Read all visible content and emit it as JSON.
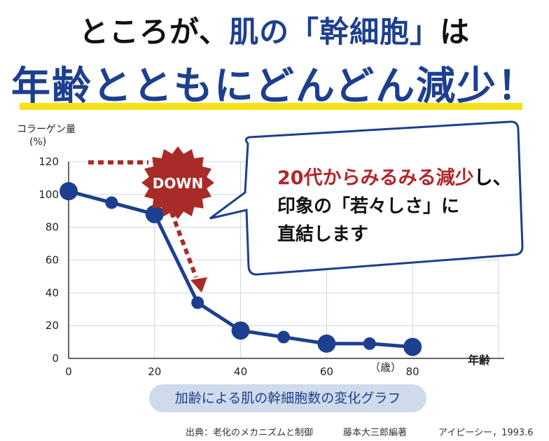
{
  "headline": {
    "line1_a": "ところが、",
    "line1_b": "肌の「幹細胞」",
    "line1_c": "は",
    "line2": "年齢とともにどんどん減少！"
  },
  "callout": {
    "line1_highlight": "20代からみるみる減少",
    "line1_rest": "し、",
    "line2": "印象の「若々しさ」に",
    "line3": "直結します"
  },
  "badge": "DOWN",
  "caption": "加齢による肌の幹細胞数の変化グラフ",
  "source": {
    "text1": "出典：老化のメカニズムと制御",
    "text2": "藤本大三郎編著",
    "text3": "アイピーシー，1993.6"
  },
  "colors": {
    "brand_blue": "#1d3f8f",
    "red": "#b3262a",
    "yellow": "#f5e21a",
    "caption_bg": "#cfdbea"
  },
  "chart_data": {
    "type": "line",
    "ylabel": "コラーゲン量",
    "yunit": "(%)",
    "xlabel": "年齢",
    "xunit": "（歳）",
    "xlim": [
      0,
      100
    ],
    "ylim": [
      0,
      120
    ],
    "xticks": [
      "0",
      "20",
      "40",
      "60",
      "80"
    ],
    "yticks": [
      "0",
      "20",
      "40",
      "60",
      "80",
      "100",
      "120"
    ],
    "grid": true,
    "series": [
      {
        "x": [
          0,
          10,
          20,
          30,
          40,
          50,
          60,
          70,
          80
        ],
        "y": [
          102,
          95,
          88,
          34,
          17,
          13,
          9,
          9,
          7
        ],
        "large": [
          true,
          false,
          true,
          false,
          true,
          false,
          true,
          false,
          true
        ]
      }
    ]
  }
}
